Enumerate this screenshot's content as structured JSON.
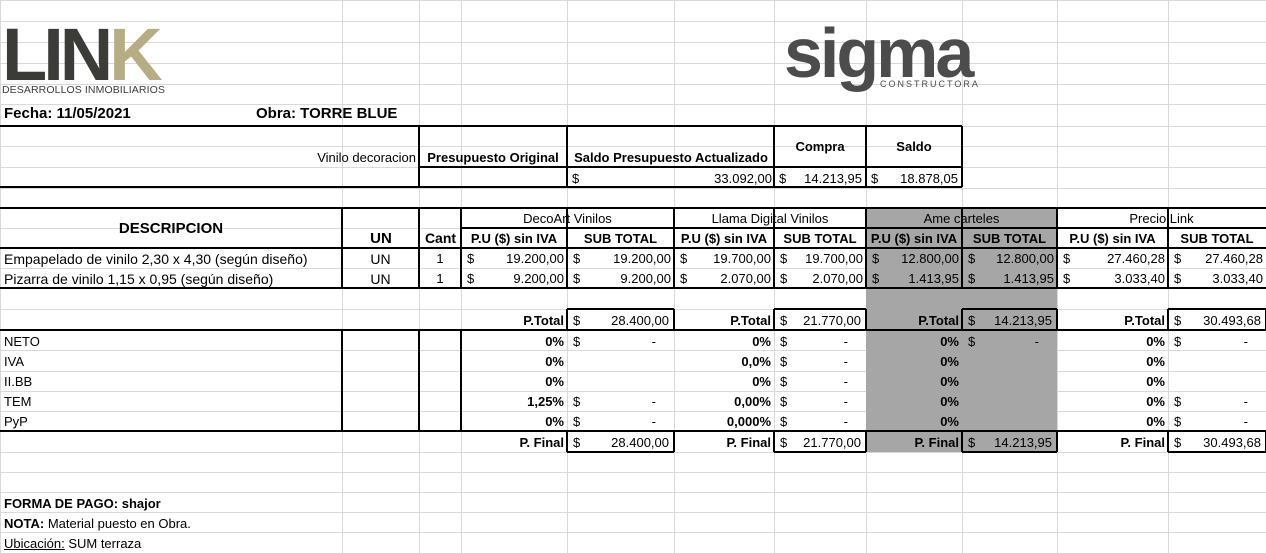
{
  "logos": {
    "link_mark": "LINK",
    "link_sub": "DESARROLLOS INMOBILIARIOS",
    "sigma_mark": "sigma",
    "sigma_sub": "CONSTRUCTORA",
    "colors": {
      "link_dark": "#3b3c37",
      "link_gold": "#b7ad82",
      "sigma_gray": "#4c4c4c"
    }
  },
  "header": {
    "fecha": "Fecha: 11/05/2021",
    "obra": "Obra:  TORRE BLUE"
  },
  "summary": {
    "row_label": "Vinilo decoracion",
    "headers": {
      "original": "Presupuesto Original",
      "actualizado": "Saldo Presupuesto Actualizado",
      "compra": "Compra",
      "saldo": "Saldo"
    },
    "values": {
      "currency": "$",
      "actualizado": "33.092,00",
      "compra": "14.213,95",
      "saldo": "18.878,05"
    }
  },
  "table": {
    "descripcion": "DESCRIPCION",
    "un": "UN",
    "cant": "Cant",
    "pu_header": "P.U ($) sin IVA",
    "sub_header": "SUB TOTAL",
    "vendors": [
      "DecoArt Vinilos",
      "Llama Digital Vinilos",
      "Ame carteles",
      "Precio Link"
    ],
    "rows": [
      {
        "desc": "Empapelado de vinilo 2,30 x 4,30 (según diseño)",
        "un": "UN",
        "cant": "1",
        "values": [
          "19.200,00",
          "19.200,00",
          "19.700,00",
          "19.700,00",
          "12.800,00",
          "12.800,00",
          "27.460,28",
          "27.460,28"
        ]
      },
      {
        "desc": "Pizarra de vinilo 1,15 x 0,95 (según diseño)",
        "un": "UN",
        "cant": "1",
        "values": [
          "9.200,00",
          "9.200,00",
          "2.070,00",
          "2.070,00",
          "1.413,95",
          "1.413,95",
          "3.033,40",
          "3.033,40"
        ]
      }
    ],
    "ptotal_label": "P.Total",
    "ptotals": [
      "28.400,00",
      "21.770,00",
      "14.213,95",
      "30.493,68"
    ],
    "taxes": [
      {
        "label": "NETO",
        "pct": [
          "0%",
          "0%",
          "0%",
          "0%"
        ],
        "amt": [
          "-",
          "-",
          "-",
          "-"
        ]
      },
      {
        "label": "IVA",
        "pct": [
          "0%",
          "0,0%",
          "0%",
          "0%"
        ],
        "amt": [
          "",
          "-",
          "",
          ""
        ]
      },
      {
        "label": "II.BB",
        "pct": [
          "0%",
          "0%",
          "0%",
          "0%"
        ],
        "amt": [
          "",
          "-",
          "",
          ""
        ]
      },
      {
        "label": "TEM",
        "pct": [
          "1,25%",
          "0,00%",
          "0%",
          "0%"
        ],
        "amt": [
          "-",
          "-",
          "",
          "-"
        ]
      },
      {
        "label": "PyP",
        "pct": [
          "0%",
          "0,000%",
          "0%",
          "0%"
        ],
        "amt": [
          "-",
          "-",
          "",
          "-"
        ]
      }
    ],
    "pfinal_label": "P. Final",
    "pfinals": [
      "28.400,00",
      "21.770,00",
      "14.213,95",
      "30.493,68"
    ],
    "currency": "$"
  },
  "footer": {
    "forma_pago": "FORMA DE PAGO: shajor",
    "nota_label": "NOTA:",
    "nota_text": " Material puesto en Obra.",
    "ubicacion_label": "Ubicación:",
    "ubicacion_text": " SUM terraza"
  }
}
